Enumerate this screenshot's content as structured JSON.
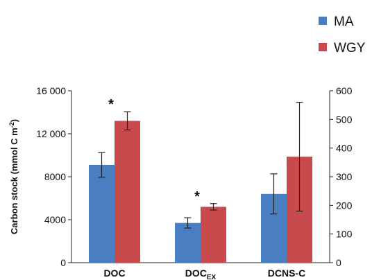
{
  "chart_data": {
    "type": "bar",
    "categories": [
      "DOC",
      "DOC_EX",
      "DCNS-C"
    ],
    "category_labels": [
      {
        "main": "DOC",
        "sub": ""
      },
      {
        "main": "DOC",
        "sub": "EX"
      },
      {
        "main": "DCNS-C",
        "sub": ""
      }
    ],
    "series": [
      {
        "name": "MA",
        "color": "#4a7ec3",
        "values": [
          9100,
          3700,
          240
        ],
        "errors": [
          1150,
          480,
          70
        ],
        "axis": [
          "left",
          "left",
          "right"
        ]
      },
      {
        "name": "WGY",
        "color": "#c84a4d",
        "values": [
          13200,
          5200,
          370
        ],
        "errors": [
          850,
          300,
          190
        ],
        "axis": [
          "left",
          "left",
          "right"
        ]
      }
    ],
    "significance": [
      "*",
      "*",
      ""
    ],
    "ylabel": {
      "text": "Carbon stock (mmol C m",
      "sup": "-2",
      "close": ")"
    },
    "ylim_left": [
      0,
      16000
    ],
    "ylim_right": [
      0,
      600
    ],
    "yticks_left": [
      "0",
      "4000",
      "8000",
      "12 000",
      "16 000"
    ],
    "yticks_right": [
      "0",
      "100",
      "200",
      "300",
      "400",
      "500",
      "600"
    ],
    "legend_position": "top-right",
    "grid": false
  }
}
